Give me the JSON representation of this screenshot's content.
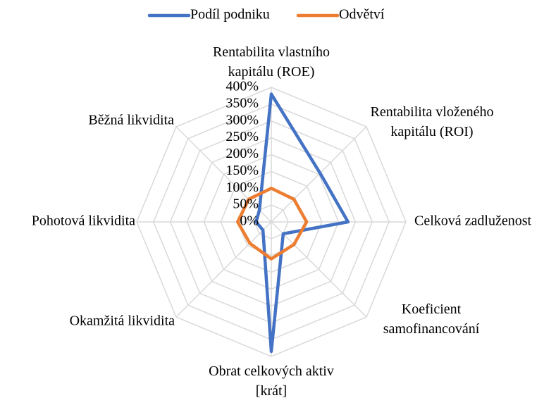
{
  "chart_data": {
    "type": "radar",
    "categories": [
      "Rentabilita vlastního\nkapitálu (ROE)",
      "Rentabilita vloženého\nkapitálu (ROI)",
      "Celková zadluženost",
      "Koeficient\nsamofinancování",
      "Obrat celkových aktiv\n[krát]",
      "Okamžitá likvidita",
      "Pohotová likvidita",
      "Běžná likvidita"
    ],
    "series": [
      {
        "name": "Podíl podniku",
        "color": "#4472c4",
        "values": [
          380,
          205,
          228,
          50,
          385,
          35,
          45,
          50
        ]
      },
      {
        "name": "Odvětví",
        "color": "#ed7d31",
        "values": [
          100,
          95,
          105,
          95,
          110,
          90,
          100,
          95
        ]
      }
    ],
    "ylim": [
      0,
      400
    ],
    "yticks": [
      {
        "value": 0,
        "label": "0%"
      },
      {
        "value": 50,
        "label": "50%"
      },
      {
        "value": 100,
        "label": "100%"
      },
      {
        "value": 150,
        "label": "150%"
      },
      {
        "value": 200,
        "label": "200%"
      },
      {
        "value": 250,
        "label": "250%"
      },
      {
        "value": 300,
        "label": "300%"
      },
      {
        "value": 350,
        "label": "350%"
      },
      {
        "value": 400,
        "label": "400%"
      }
    ],
    "grid": true,
    "legend": "top"
  }
}
